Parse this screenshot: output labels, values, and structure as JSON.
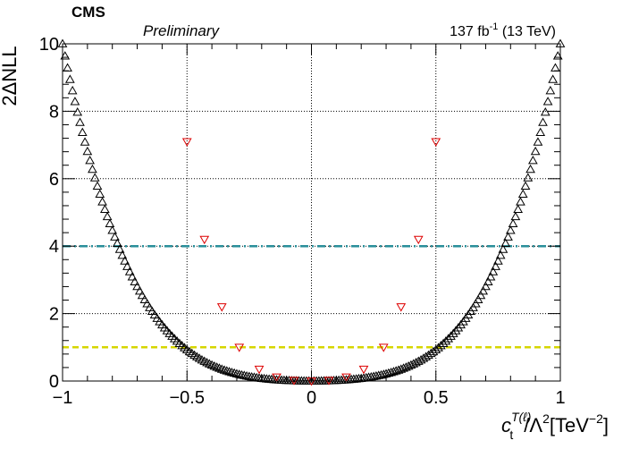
{
  "chart_data": {
    "type": "scatter",
    "header": {
      "experiment": "CMS",
      "status": "Preliminary",
      "lumi_value": "137 fb",
      "lumi_exp": "-1",
      "lumi_energy": " (13 TeV)"
    },
    "xlabel": {
      "symbol": "c",
      "sub": "t",
      "sup": "T(ℓ)",
      "mid": "/Λ",
      "mid_sup": "2",
      "unit": "[TeV",
      "unit_sup": "−2",
      "unit_end": "]"
    },
    "ylabel": "2ΔNLL",
    "xlim": [
      -1,
      1
    ],
    "ylim": [
      0,
      10
    ],
    "xticks": [
      -1,
      -0.5,
      0,
      0.5,
      1
    ],
    "xtick_labels": [
      "−1",
      "−0.5",
      "0",
      "0.5",
      "1"
    ],
    "yticks": [
      0,
      2,
      4,
      6,
      8,
      10
    ],
    "ytick_labels": [
      "0",
      "2",
      "4",
      "6",
      "8",
      "10"
    ],
    "grid": true,
    "reference_lines": [
      {
        "y": 4,
        "color": "#2a8f9a",
        "style": "dashdot"
      },
      {
        "y": 1,
        "color": "#d6d600",
        "style": "dashed"
      }
    ],
    "series": [
      {
        "marker": "open-triangle-up",
        "color": "#000000",
        "x_range": [
          -1,
          1
        ],
        "n_points": 201,
        "curve_model": {
          "a2": 1.6,
          "a4": 8.4
        }
      },
      {
        "marker": "open-triangle-down",
        "color": "#dd0000",
        "points": [
          [
            -0.5,
            7.1
          ],
          [
            -0.43,
            4.2
          ],
          [
            -0.36,
            2.2
          ],
          [
            -0.29,
            1.0
          ],
          [
            -0.21,
            0.35
          ],
          [
            -0.14,
            0.12
          ],
          [
            -0.07,
            0.02
          ],
          [
            0.0,
            0.0
          ],
          [
            0.07,
            0.02
          ],
          [
            0.14,
            0.12
          ],
          [
            0.21,
            0.35
          ],
          [
            0.29,
            1.0
          ],
          [
            0.36,
            2.2
          ],
          [
            0.43,
            4.2
          ],
          [
            0.5,
            7.1
          ]
        ]
      }
    ]
  }
}
